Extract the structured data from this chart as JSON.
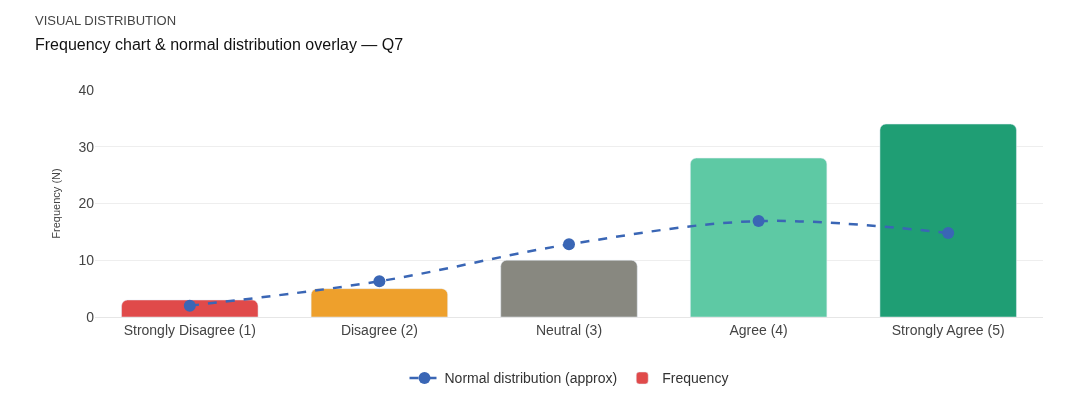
{
  "chart_data": {
    "type": "bar",
    "title": "VISUAL DISTRIBUTION",
    "subtitle": "Frequency chart & normal distribution overlay — Q7",
    "ylabel": "Frequency (N)",
    "categories": [
      "Strongly Disagree (1)",
      "Disagree (2)",
      "Neutral (3)",
      "Agree (4)",
      "Strongly Agree (5)"
    ],
    "series": [
      {
        "name": "Normal distribution (approx)",
        "type": "line",
        "color": "#3a66b5",
        "values": [
          2.0,
          6.3,
          12.8,
          16.9,
          14.8
        ],
        "marker": "circle",
        "line_style": "dashed"
      },
      {
        "name": "Frequency",
        "colors": [
          "#e04a4a",
          "#eea02c",
          "#888880",
          "#5ec9a4",
          "#1f9e74"
        ],
        "values": [
          3,
          5,
          10,
          28,
          34
        ]
      }
    ],
    "ylim": [
      0,
      40
    ],
    "yticks": [
      0,
      10,
      20,
      30,
      40
    ],
    "grid": "y",
    "legend": "bottom"
  }
}
